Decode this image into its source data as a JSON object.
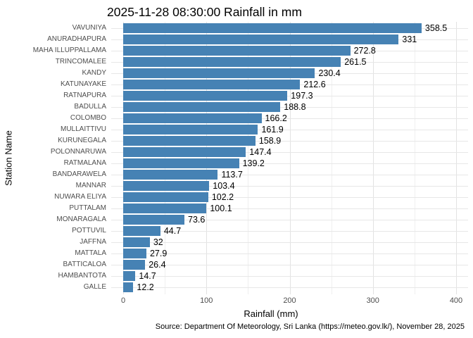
{
  "chart_data": {
    "type": "bar",
    "orientation": "horizontal",
    "title": "2025-11-28 08:30:00 Rainfall in mm",
    "xlabel": "Rainfall (mm)",
    "ylabel": "Station Name",
    "caption": "Source: Department Of Meteorology, Sri Lanka (https://meteo.gov.lk/), November 28, 2025",
    "categories": [
      "VAVUNIYA",
      "ANURADHAPURA",
      "MAHA ILLUPPALLAMA",
      "TRINCOMALEE",
      "KANDY",
      "KATUNAYAKE",
      "RATNAPURA",
      "BADULLA",
      "COLOMBO",
      "MULLAITTIVU",
      "KURUNEGALA",
      "POLONNARUWA",
      "RATMALANA",
      "BANDARAWELA",
      "MANNAR",
      "NUWARA ELIYA",
      "PUTTALAM",
      "MONARAGALA",
      "POTTUVIL",
      "JAFFNA",
      "MATTALA",
      "BATTICALOA",
      "HAMBANTOTA",
      "GALLE"
    ],
    "values": [
      358.5,
      331,
      272.8,
      261.5,
      230.4,
      212.6,
      197.3,
      188.8,
      166.2,
      161.9,
      158.9,
      147.4,
      139.2,
      113.7,
      103.4,
      102.2,
      100.1,
      73.6,
      44.7,
      32,
      27.9,
      26.4,
      14.7,
      12.2
    ],
    "value_labels": [
      "358.5",
      "331",
      "272.8",
      "261.5",
      "230.4",
      "212.6",
      "197.3",
      "188.8",
      "166.2",
      "161.9",
      "158.9",
      "147.4",
      "139.2",
      "113.7",
      "103.4",
      "102.2",
      "100.1",
      "73.6",
      "44.7",
      "32",
      "27.9",
      "26.4",
      "14.7",
      "12.2"
    ],
    "x_ticks": [
      0,
      100,
      200,
      300,
      400
    ],
    "x_minor_ticks": [
      50,
      150,
      250,
      350
    ],
    "xlim": [
      0,
      400
    ],
    "bar_color": "#4682B4",
    "grid": true,
    "legend": false
  }
}
